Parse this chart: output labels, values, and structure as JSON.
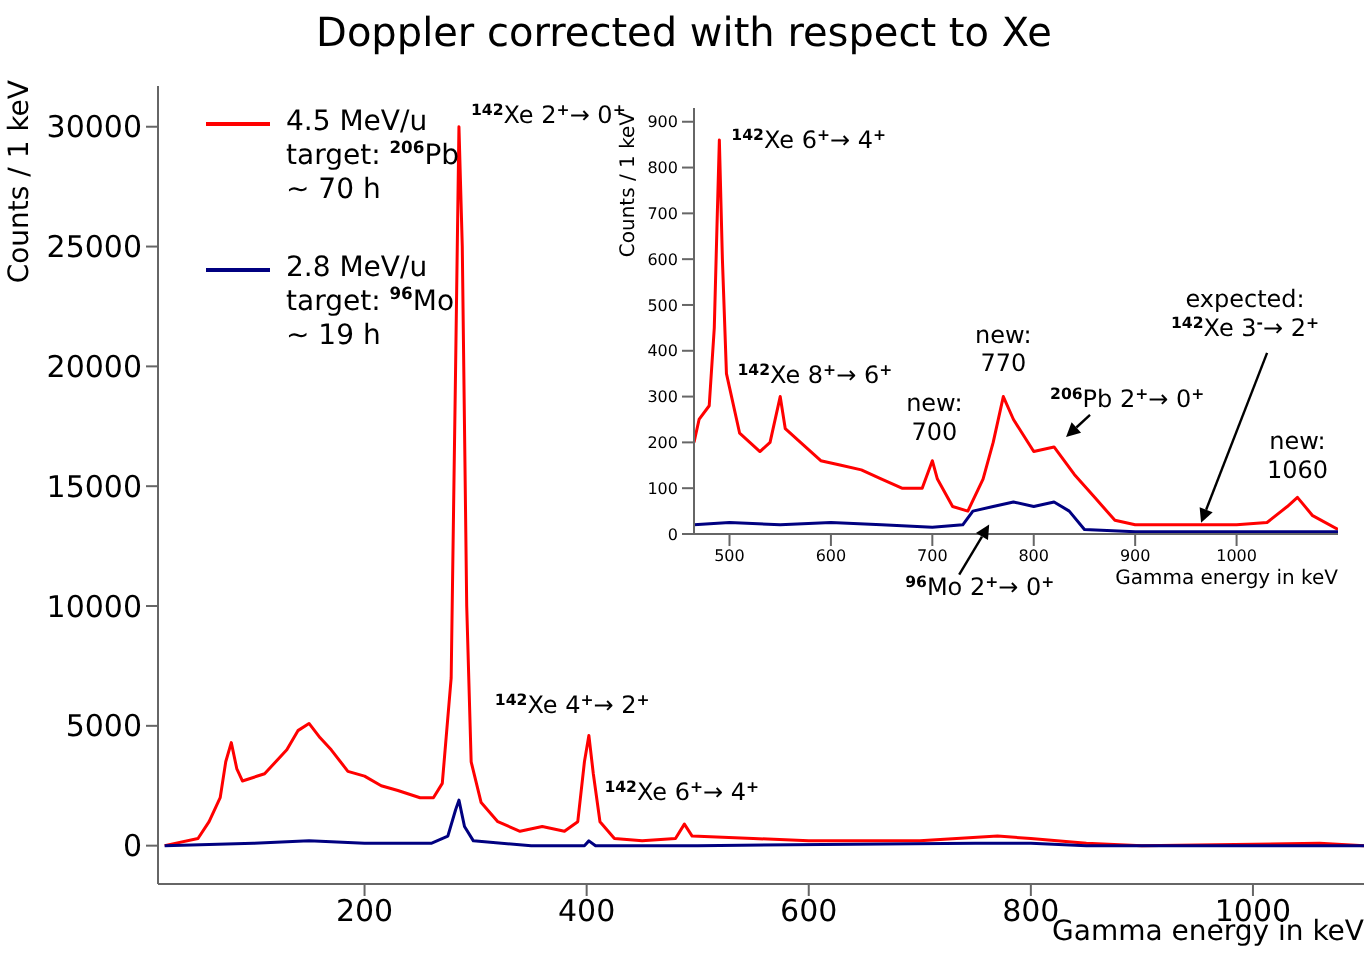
{
  "chart_data": [
    {
      "type": "line",
      "title": "Doppler corrected with respect to Xe",
      "xlabel": "Gamma energy in keV",
      "ylabel": "Counts / 1 keV",
      "xlim": [
        14,
        1100
      ],
      "ylim": [
        -1600,
        31700
      ],
      "xticks": [
        200,
        400,
        600,
        800,
        1000
      ],
      "yticks": [
        0,
        5000,
        10000,
        15000,
        20000,
        25000,
        30000
      ],
      "legend": "top left",
      "series": [
        {
          "name": "4.5 MeV/u\ntarget: $^{206}$Pb\n~ 70 h",
          "color": "#ff0000",
          "x": [
            20,
            50,
            60,
            70,
            75,
            80,
            85,
            90,
            110,
            130,
            140,
            150,
            160,
            170,
            185,
            200,
            215,
            230,
            250,
            262,
            270,
            278,
            282,
            285,
            288,
            292,
            296,
            305,
            320,
            340,
            360,
            380,
            392,
            398,
            402,
            406,
            412,
            425,
            450,
            480,
            488,
            495,
            550,
            600,
            700,
            770,
            800,
            850,
            900,
            1060,
            1100
          ],
          "values": [
            0,
            300,
            1000,
            2000,
            3500,
            4300,
            3200,
            2700,
            3000,
            4000,
            4800,
            5100,
            4500,
            4000,
            3100,
            2900,
            2500,
            2300,
            2000,
            2000,
            2600,
            7000,
            20000,
            30000,
            25000,
            10000,
            3500,
            1800,
            1000,
            600,
            800,
            600,
            1000,
            3500,
            4600,
            3000,
            1000,
            300,
            200,
            300,
            900,
            400,
            300,
            200,
            200,
            400,
            300,
            100,
            0,
            100,
            0
          ]
        },
        {
          "name": "2.8 MeV/u\ntarget: $^{96}$Mo\n~ 19 h",
          "color": "#000080",
          "x": [
            20,
            100,
            150,
            200,
            260,
            275,
            282,
            285,
            290,
            298,
            350,
            398,
            402,
            408,
            500,
            750,
            800,
            850,
            1100
          ],
          "values": [
            0,
            100,
            200,
            100,
            100,
            400,
            1500,
            1900,
            800,
            200,
            0,
            0,
            200,
            0,
            0,
            100,
            100,
            0,
            0
          ]
        }
      ],
      "annotations": [
        {
          "text": "$^{142}$Xe 2$^{+}$→ 0$^{+}$",
          "x": 285,
          "y": 30000
        },
        {
          "text": "$^{142}$Xe 4$^{+}$→ 2$^{+}$",
          "x": 402,
          "y": 4600
        },
        {
          "text": "$^{142}$Xe 6$^{+}$→ 4$^{+}$",
          "x": 488,
          "y": 900
        }
      ]
    },
    {
      "type": "line",
      "xlabel": "Gamma energy in keV",
      "ylabel": "Counts / 1 keV",
      "xlim": [
        465,
        1100
      ],
      "ylim": [
        0,
        930
      ],
      "xticks": [
        500,
        600,
        700,
        800,
        900,
        1000
      ],
      "yticks": [
        0,
        100,
        200,
        300,
        400,
        500,
        600,
        700,
        800,
        900
      ],
      "series": [
        {
          "color": "#ff0000",
          "x": [
            465,
            470,
            480,
            485,
            488,
            490,
            493,
            497,
            500,
            510,
            520,
            530,
            540,
            550,
            555,
            570,
            590,
            610,
            630,
            650,
            670,
            690,
            700,
            705,
            720,
            735,
            750,
            760,
            770,
            780,
            800,
            820,
            840,
            860,
            880,
            900,
            950,
            1000,
            1030,
            1050,
            1060,
            1075,
            1100
          ],
          "values": [
            200,
            250,
            280,
            450,
            700,
            860,
            600,
            350,
            320,
            220,
            200,
            180,
            200,
            300,
            230,
            200,
            160,
            150,
            140,
            120,
            100,
            100,
            160,
            120,
            60,
            50,
            120,
            200,
            300,
            250,
            180,
            190,
            130,
            80,
            30,
            20,
            20,
            20,
            25,
            60,
            80,
            40,
            10
          ]
        },
        {
          "color": "#000080",
          "x": [
            465,
            500,
            550,
            600,
            650,
            700,
            730,
            740,
            760,
            780,
            800,
            820,
            835,
            850,
            900,
            1000,
            1100
          ],
          "values": [
            20,
            25,
            20,
            25,
            20,
            15,
            20,
            50,
            60,
            70,
            60,
            70,
            50,
            10,
            5,
            5,
            5
          ]
        }
      ],
      "annotations": [
        {
          "text": "$^{142}$Xe 6$^{+}$→ 4$^{+}$",
          "x": 490,
          "y": 860
        },
        {
          "text": "$^{142}$Xe 8$^{+}$→ 6$^{+}$",
          "x": 500,
          "y": 320
        },
        {
          "text": "new:\n700",
          "x": 702,
          "y": 160
        },
        {
          "text": "new:\n770",
          "x": 770,
          "y": 300
        },
        {
          "text": "$^{206}$Pb 2$^{+}$→ 0$^{+}$",
          "x": 820,
          "y": 190
        },
        {
          "text": "$^{96}$Mo 2$^{+}$→ 0$^{+}$",
          "x": 760,
          "y": 60
        },
        {
          "text": "expected:\n$^{142}$Xe 3$^{-}$→ 2$^{+}$",
          "x": 965,
          "y": 20
        },
        {
          "text": "new:\n1060",
          "x": 1060,
          "y": 80
        }
      ]
    }
  ]
}
